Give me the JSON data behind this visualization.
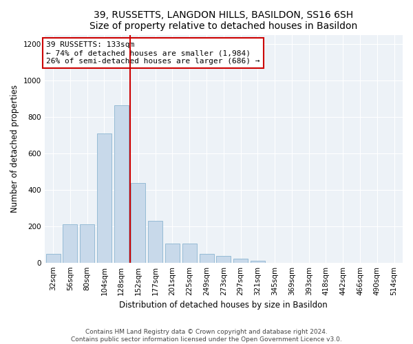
{
  "title": "39, RUSSETTS, LANGDON HILLS, BASILDON, SS16 6SH",
  "subtitle": "Size of property relative to detached houses in Basildon",
  "xlabel": "Distribution of detached houses by size in Basildon",
  "ylabel": "Number of detached properties",
  "categories": [
    "32sqm",
    "56sqm",
    "80sqm",
    "104sqm",
    "128sqm",
    "152sqm",
    "177sqm",
    "201sqm",
    "225sqm",
    "249sqm",
    "273sqm",
    "297sqm",
    "321sqm",
    "345sqm",
    "369sqm",
    "393sqm",
    "418sqm",
    "442sqm",
    "466sqm",
    "490sqm",
    "514sqm"
  ],
  "values": [
    48,
    210,
    210,
    710,
    865,
    435,
    230,
    105,
    105,
    48,
    38,
    20,
    10,
    0,
    0,
    0,
    0,
    0,
    0,
    0,
    0
  ],
  "bar_color": "#c8d9ea",
  "bar_edge_color": "#8ab4d0",
  "vline_color": "#cc0000",
  "annotation_text": "39 RUSSETTS: 133sqm\n← 74% of detached houses are smaller (1,984)\n26% of semi-detached houses are larger (686) →",
  "annotation_box_color": "#ffffff",
  "annotation_box_edge_color": "#cc0000",
  "ylim": [
    0,
    1250
  ],
  "yticks": [
    0,
    200,
    400,
    600,
    800,
    1000,
    1200
  ],
  "footnote": "Contains HM Land Registry data © Crown copyright and database right 2024.\nContains public sector information licensed under the Open Government Licence v3.0.",
  "title_fontsize": 10,
  "xlabel_fontsize": 8.5,
  "ylabel_fontsize": 8.5,
  "tick_fontsize": 7.5,
  "annotation_fontsize": 8,
  "footnote_fontsize": 6.5,
  "bg_color": "#edf2f7"
}
